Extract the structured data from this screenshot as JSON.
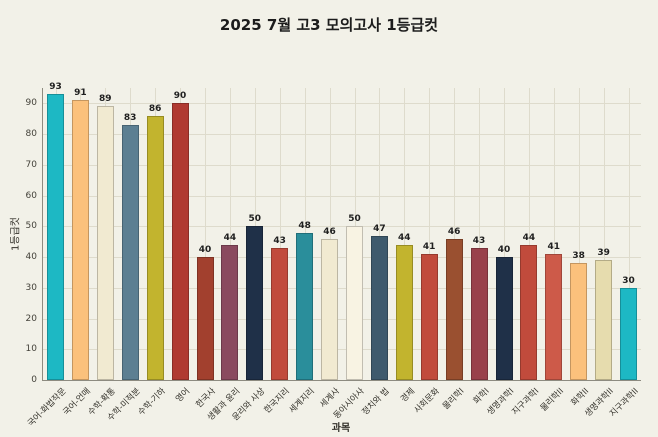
{
  "chart_data": {
    "type": "bar",
    "title": "2025 7월 고3 모의고사 1등급컷",
    "xlabel": "과목",
    "ylabel": "1등급컷",
    "ylim": [
      0,
      95
    ],
    "yticks": [
      0,
      10,
      20,
      30,
      40,
      50,
      60,
      70,
      80,
      90
    ],
    "grid": true,
    "legend": "none",
    "background_color": "#f2f1e8",
    "grid_color": "#dedbcc",
    "categories": [
      "국어-화법작문",
      "국어-언매",
      "수학-확통",
      "수학-미적분",
      "수학-기하",
      "영어",
      "한국사",
      "생활과 윤리",
      "윤리와 사상",
      "한국지리",
      "세계지리",
      "세계사",
      "동아시아사",
      "정치와 법",
      "경제",
      "사회문화",
      "물리학I",
      "화학I",
      "생명과학I",
      "지구과학I",
      "물리학II",
      "화학II",
      "생명과학II",
      "지구과학II"
    ],
    "values": [
      93,
      91,
      89,
      83,
      86,
      90,
      40,
      44,
      50,
      43,
      48,
      46,
      50,
      47,
      44,
      41,
      46,
      43,
      40,
      44,
      41,
      38,
      39,
      30
    ],
    "bar_colors": [
      "#1db8c4",
      "#fbc17c",
      "#f1ead1",
      "#5c7f92",
      "#c2b42e",
      "#b03a31",
      "#a2402e",
      "#8a4a5f",
      "#1f3048",
      "#c14b3c",
      "#2a8e9b",
      "#f1ead1",
      "#f8f3e3",
      "#3e5a6d",
      "#c2b42e",
      "#c14b3c",
      "#9a5030",
      "#99414b",
      "#1f3048",
      "#c14b3c",
      "#cd5a49",
      "#fbc17c",
      "#e6dcae",
      "#1db8c4"
    ]
  }
}
